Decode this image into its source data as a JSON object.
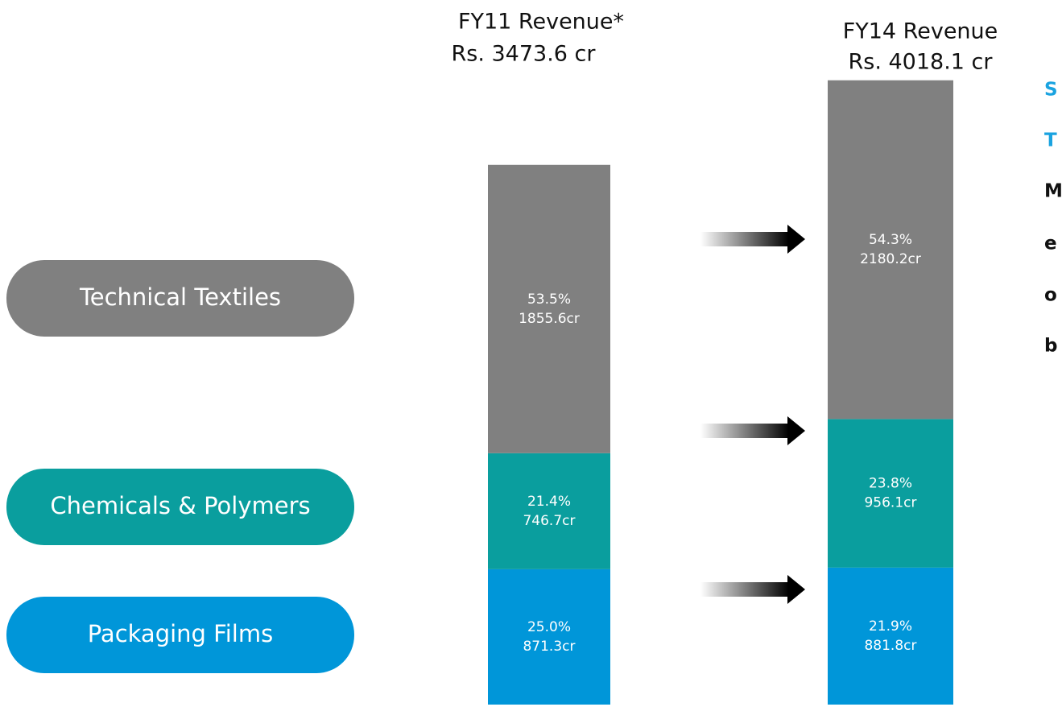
{
  "chart_data": {
    "type": "stacked_bar",
    "categories": [
      "FY11 Revenue*",
      "FY14 Revenue"
    ],
    "total_labels": [
      "Rs. 3473.6 cr",
      "Rs. 4018.1 cr"
    ],
    "series": [
      {
        "name": "Packaging Films",
        "color": "#0096d9",
        "values": [
          871.3,
          881.8
        ],
        "value_labels": [
          "871.3cr",
          "881.8cr"
        ],
        "share_labels": [
          "25.0%",
          "21.9%"
        ]
      },
      {
        "name": "Chemicals & Polymers",
        "color": "#0a9e9e",
        "values": [
          746.7,
          956.1
        ],
        "value_labels": [
          "746.7cr",
          "956.1cr"
        ],
        "share_labels": [
          "21.4%",
          "23.8%"
        ]
      },
      {
        "name": "Technical Textiles",
        "color": "#808080",
        "values": [
          1855.6,
          2180.2
        ],
        "value_labels": [
          "1855.6cr",
          "2180.2cr"
        ],
        "share_labels": [
          "53.5%",
          "54.3%"
        ]
      }
    ],
    "ylim": [
      0,
      4400
    ],
    "side_text": [
      {
        "text": "S",
        "color": "#1aa3e0"
      },
      {
        "text": "T",
        "color": "#1aa3e0"
      },
      {
        "text": "M",
        "color": "#111111"
      },
      {
        "text": "e",
        "color": "#111111"
      },
      {
        "text": "o",
        "color": "#111111"
      },
      {
        "text": "b",
        "color": "#111111"
      }
    ]
  }
}
